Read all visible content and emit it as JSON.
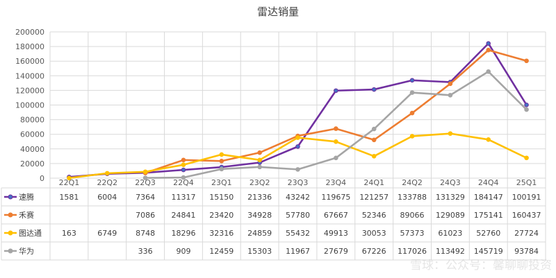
{
  "chart_data": {
    "type": "line",
    "title": "雷达销量",
    "categories": [
      "22Q1",
      "22Q2",
      "22Q3",
      "22Q4",
      "23Q1",
      "23Q2",
      "23Q3",
      "23Q4",
      "24Q1",
      "24Q2",
      "24Q3",
      "24Q4",
      "25Q1"
    ],
    "ylim": [
      0,
      200000
    ],
    "yticks": [
      0,
      20000,
      40000,
      60000,
      80000,
      100000,
      120000,
      140000,
      160000,
      180000,
      200000
    ],
    "grid": true,
    "legend": "data-table-left",
    "series": [
      {
        "name": "速腾",
        "color": "#7030A0",
        "marker": "#4472C4",
        "values": [
          1581,
          6004,
          7364,
          11317,
          15150,
          21336,
          43242,
          119675,
          121257,
          133788,
          131329,
          184147,
          100191
        ]
      },
      {
        "name": "禾赛",
        "color": "#ED7D31",
        "marker": "#ED7D31",
        "values": [
          null,
          null,
          7086,
          24841,
          23420,
          34928,
          57780,
          67667,
          52346,
          89066,
          129089,
          175141,
          160437
        ]
      },
      {
        "name": "图达通",
        "color": "#FFC000",
        "marker": "#FFC000",
        "values": [
          163,
          6749,
          8748,
          18296,
          32316,
          24859,
          55432,
          49913,
          30053,
          57373,
          61023,
          52760,
          27724
        ]
      },
      {
        "name": "华为",
        "color": "#A5A5A5",
        "marker": "#A5A5A5",
        "values": [
          null,
          null,
          336,
          909,
          12459,
          15303,
          11967,
          27679,
          67226,
          117026,
          113492,
          145719,
          93784
        ]
      }
    ]
  },
  "watermark": "雪球：公众号：馨聊聊投资"
}
